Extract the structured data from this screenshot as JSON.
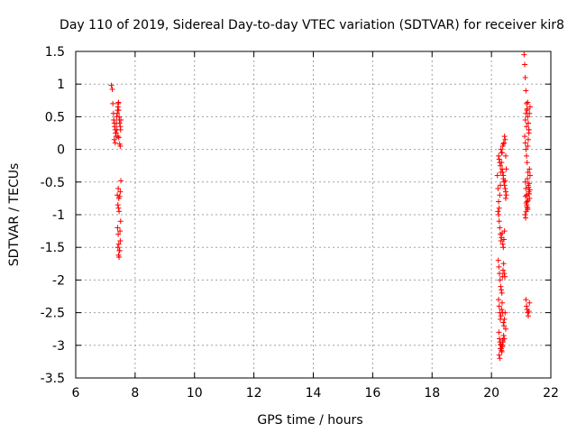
{
  "chart_data": {
    "type": "scatter",
    "title": "Day 110 of 2019, Sidereal Day-to-day VTEC variation (SDTVAR) for receiver kir8",
    "xlabel": "GPS time / hours",
    "ylabel": "SDTVAR / TECUs",
    "xlim": [
      6,
      22
    ],
    "ylim": [
      -3.5,
      1.5
    ],
    "xticks": [
      6,
      8,
      10,
      12,
      14,
      16,
      18,
      20,
      22
    ],
    "yticks": [
      1.5,
      1,
      0.5,
      0,
      -0.5,
      -1,
      -1.5,
      -2,
      -2.5,
      -3,
      -3.5
    ],
    "xtick_labels": [
      "6",
      "8",
      "10",
      "12",
      "14",
      "16",
      "18",
      "20",
      "22"
    ],
    "ytick_labels": [
      "1.5",
      "1",
      "0.5",
      "0",
      "-0.5",
      "-1",
      "-1.5",
      "-2",
      "-2.5",
      "-3",
      "-3.5"
    ],
    "grid": true,
    "marker": "+",
    "color": "#ff0000",
    "series": [
      {
        "x": [
          7.2,
          7.23,
          7.25,
          7.27,
          7.28,
          7.3,
          7.31,
          7.33,
          7.34,
          7.36,
          7.37,
          7.38,
          7.4,
          7.41,
          7.42,
          7.43,
          7.44,
          7.45,
          7.46,
          7.47,
          7.48,
          7.5,
          7.51,
          7.52,
          7.3,
          7.33,
          7.36,
          7.39,
          7.42,
          7.45,
          7.48,
          7.5,
          7.4,
          7.42,
          7.44,
          7.46,
          7.48,
          7.5,
          7.52,
          7.41,
          7.43,
          7.45,
          7.47,
          7.49,
          7.51,
          7.42,
          7.44,
          7.46,
          7.48,
          7.5,
          7.43,
          7.45
        ],
        "y": [
          0.98,
          0.92,
          0.7,
          0.55,
          0.45,
          0.4,
          0.35,
          0.3,
          0.25,
          0.2,
          0.4,
          0.5,
          0.55,
          0.6,
          0.65,
          0.7,
          0.72,
          0.6,
          0.5,
          0.45,
          0.4,
          0.35,
          0.3,
          0.45,
          0.15,
          0.1,
          0.25,
          0.3,
          0.2,
          0.18,
          0.08,
          0.05,
          -0.7,
          -0.85,
          -0.9,
          -0.95,
          -0.72,
          -0.65,
          -0.48,
          -1.2,
          -1.3,
          -1.45,
          -1.55,
          -1.25,
          -1.1,
          -1.5,
          -1.62,
          -1.65,
          -1.55,
          -1.4,
          -0.6,
          -0.75
        ]
      },
      {
        "x": [
          20.2,
          20.22,
          20.24,
          20.26,
          20.28,
          20.3,
          20.32,
          20.34,
          20.36,
          20.38,
          20.4,
          20.42,
          20.44,
          20.46,
          20.48,
          20.5,
          20.22,
          20.24,
          20.26,
          20.28,
          20.3,
          20.32,
          20.34,
          20.36,
          20.38,
          20.4,
          20.42,
          20.44,
          20.23,
          20.25,
          20.27,
          20.29,
          20.31,
          20.33,
          20.35,
          20.37,
          20.39,
          20.41,
          20.43,
          20.45,
          20.24,
          20.26,
          20.28,
          20.3,
          20.32,
          20.34,
          20.36,
          20.38,
          20.4,
          20.42,
          20.44,
          20.46,
          20.48,
          20.25,
          20.27,
          20.29,
          20.31,
          20.33,
          20.35,
          20.37,
          20.39,
          20.41,
          20.43,
          20.26,
          20.28,
          20.3,
          20.32,
          20.34,
          20.36,
          20.38,
          20.4,
          20.42,
          20.44,
          20.46,
          20.48,
          20.24,
          20.26,
          20.28,
          20.3,
          20.32,
          20.34,
          20.36,
          20.38,
          20.4,
          20.5,
          20.48,
          20.46
        ],
        "y": [
          -0.4,
          -0.6,
          -0.8,
          -0.9,
          -0.7,
          -0.55,
          -0.35,
          -0.2,
          -0.05,
          0.05,
          0.08,
          0.1,
          0.2,
          0.15,
          -0.1,
          -0.3,
          -0.95,
          -1.0,
          -1.1,
          -1.2,
          -1.3,
          -1.4,
          -1.35,
          -1.28,
          -1.45,
          -1.5,
          -1.38,
          -1.25,
          -1.7,
          -1.8,
          -1.9,
          -2.0,
          -2.1,
          -2.15,
          -2.2,
          -1.95,
          -1.85,
          -1.75,
          -1.9,
          -1.95,
          -2.3,
          -2.4,
          -2.5,
          -2.6,
          -2.55,
          -2.45,
          -2.35,
          -2.5,
          -2.65,
          -2.7,
          -2.6,
          -2.5,
          -2.75,
          -2.8,
          -2.9,
          -2.95,
          -3.0,
          -3.05,
          -3.1,
          -3.0,
          -2.95,
          -2.85,
          -2.9,
          -3.15,
          -3.2,
          -3.05,
          -2.98,
          -3.08,
          -3.02,
          -2.92,
          -0.45,
          -0.5,
          -0.55,
          -0.6,
          -0.65,
          -0.1,
          -0.15,
          -0.2,
          -0.25,
          0.0,
          -0.05,
          -0.3,
          -0.35,
          -0.4,
          -0.7,
          -0.75,
          -0.48
        ]
      },
      {
        "x": [
          21.1,
          21.12,
          21.14,
          21.16,
          21.18,
          21.2,
          21.22,
          21.24,
          21.26,
          21.28,
          21.3,
          21.12,
          21.14,
          21.16,
          21.18,
          21.2,
          21.22,
          21.24,
          21.26,
          21.28,
          21.3,
          21.14,
          21.16,
          21.18,
          21.2,
          21.22,
          21.24,
          21.26,
          21.28,
          21.13,
          21.15,
          21.17,
          21.19,
          21.21,
          21.23,
          21.25,
          21.27,
          21.29,
          21.16,
          21.18,
          21.2,
          21.22,
          21.24,
          21.26,
          21.28,
          21.15,
          21.17,
          21.19,
          21.21,
          21.23,
          21.25,
          21.27,
          21.14,
          21.16,
          21.18,
          21.2,
          21.22,
          21.24,
          21.26
        ],
        "y": [
          1.45,
          1.3,
          1.1,
          0.9,
          0.7,
          0.6,
          0.5,
          0.4,
          0.3,
          0.55,
          0.65,
          0.2,
          0.1,
          0.0,
          -0.1,
          -0.2,
          0.05,
          0.15,
          0.25,
          -0.3,
          -0.4,
          -0.5,
          -0.6,
          -0.7,
          -0.8,
          -0.9,
          -0.55,
          -0.65,
          -0.75,
          -1.0,
          -1.05,
          -0.95,
          -0.85,
          -0.45,
          -0.35,
          -0.58,
          -0.68,
          -0.62,
          -2.3,
          -2.4,
          -2.45,
          -2.5,
          -2.55,
          -2.48,
          -2.35,
          -0.72,
          -0.82,
          -0.88,
          -0.92,
          -0.78,
          -0.68,
          -0.52,
          0.45,
          0.55,
          0.35,
          0.62,
          0.72,
          0.4,
          0.3
        ]
      }
    ]
  }
}
